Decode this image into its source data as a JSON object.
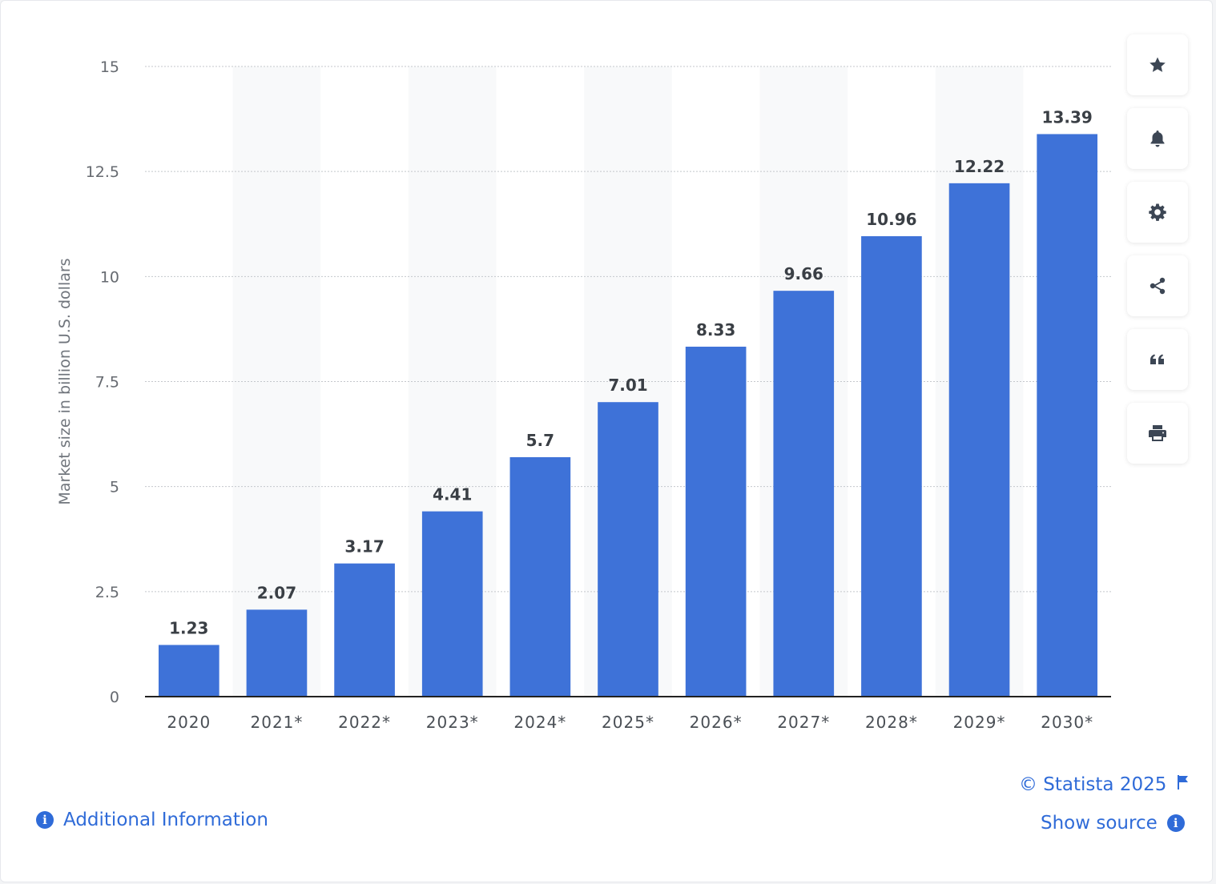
{
  "chart_data": {
    "type": "bar",
    "categories": [
      "2020",
      "2021*",
      "2022*",
      "2023*",
      "2024*",
      "2025*",
      "2026*",
      "2027*",
      "2028*",
      "2029*",
      "2030*"
    ],
    "values": [
      1.23,
      2.07,
      3.17,
      4.41,
      5.7,
      7.01,
      8.33,
      9.66,
      10.96,
      12.22,
      13.39
    ],
    "value_labels": [
      "1.23",
      "2.07",
      "3.17",
      "4.41",
      "5.7",
      "7.01",
      "8.33",
      "9.66",
      "10.96",
      "12.22",
      "13.39"
    ],
    "ylabel": "Market size in billion U.S. dollars",
    "ylim": [
      0,
      15
    ],
    "yticks": [
      0,
      2.5,
      5,
      7.5,
      10,
      12.5,
      15
    ],
    "ytick_labels": [
      "0",
      "2.5",
      "5",
      "7.5",
      "10",
      "12.5",
      "15"
    ],
    "grid": true,
    "bar_color": "#3e72d8",
    "alt_column_shade": "#f8f9fa"
  },
  "toolbar": {
    "items": [
      {
        "name": "favorite",
        "icon": "star-icon"
      },
      {
        "name": "notify",
        "icon": "bell-icon"
      },
      {
        "name": "settings",
        "icon": "gear-icon"
      },
      {
        "name": "share",
        "icon": "share-icon"
      },
      {
        "name": "cite",
        "icon": "quote-icon"
      },
      {
        "name": "print",
        "icon": "printer-icon"
      }
    ]
  },
  "footer": {
    "copyright": "© Statista 2025",
    "show_source": "Show source",
    "additional_info": "Additional Information",
    "link_color": "#2f6bd8"
  }
}
